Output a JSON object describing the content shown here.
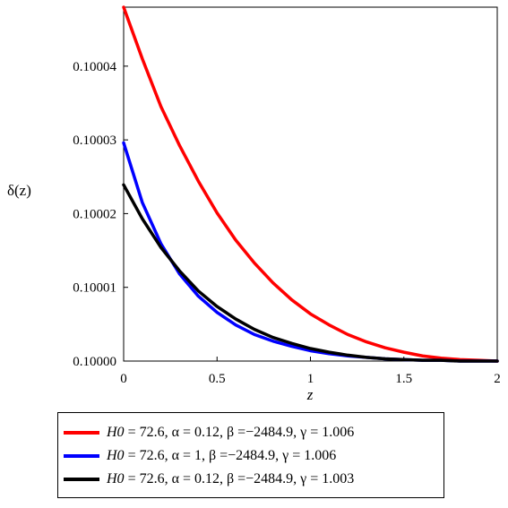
{
  "chart_data": {
    "type": "line",
    "xlabel": "z",
    "ylabel": "δ(z)",
    "xlim": [
      0,
      2
    ],
    "ylim": [
      0.1,
      0.100048
    ],
    "x_ticks": [
      "0",
      "0.5",
      "1",
      "1.5",
      "2"
    ],
    "y_ticks": [
      "0.10000",
      "0.10001",
      "0.10002",
      "0.10003",
      "0.10004"
    ],
    "grid": false,
    "legend_position": "bottom",
    "series": [
      {
        "name": "H0 = 72.6, α = 0.12, β =−2484.9, γ = 1.006",
        "color": "#ff0000",
        "x": [
          0,
          0.1,
          0.2,
          0.3,
          0.4,
          0.5,
          0.6,
          0.7,
          0.8,
          0.9,
          1.0,
          1.1,
          1.2,
          1.3,
          1.4,
          1.5,
          1.6,
          1.7,
          1.8,
          1.9,
          2.0
        ],
        "y": [
          0.100048,
          0.100041,
          0.1000345,
          0.1000292,
          0.1000244,
          0.1000201,
          0.1000164,
          0.1000133,
          0.1000106,
          0.1000083,
          0.1000064,
          0.1000049,
          0.1000036,
          0.1000026,
          0.1000018,
          0.1000012,
          0.1000007,
          0.1000004,
          0.1000002,
          0.1000001,
          0.1
        ]
      },
      {
        "name": "H0 = 72.6, α = 1, β =−2484.9, γ = 1.006",
        "color": "#0000ff",
        "x": [
          0,
          0.1,
          0.2,
          0.3,
          0.4,
          0.5,
          0.6,
          0.7,
          0.8,
          0.9,
          1.0,
          1.1,
          1.2,
          1.3,
          1.4,
          1.5,
          1.6,
          1.7,
          1.8,
          1.9,
          2.0
        ],
        "y": [
          0.1000296,
          0.1000215,
          0.1000159,
          0.1000118,
          0.1000088,
          0.1000066,
          0.1000049,
          0.1000036,
          0.1000027,
          0.100002,
          0.1000014,
          0.100001,
          0.1000007,
          0.1000005,
          0.1000003,
          0.1000002,
          0.1000001,
          0.1000001,
          0.1,
          0.1,
          0.1
        ]
      },
      {
        "name": "H0 = 72.6, α = 0.12, β =−2484.9, γ = 1.003",
        "color": "#000000",
        "x": [
          0,
          0.1,
          0.2,
          0.3,
          0.4,
          0.5,
          0.6,
          0.7,
          0.8,
          0.9,
          1.0,
          1.1,
          1.2,
          1.3,
          1.4,
          1.5,
          1.6,
          1.7,
          1.8,
          1.9,
          2.0
        ],
        "y": [
          0.1000239,
          0.1000193,
          0.1000154,
          0.1000122,
          0.1000095,
          0.1000074,
          0.1000057,
          0.1000043,
          0.1000032,
          0.1000024,
          0.1000017,
          0.1000012,
          0.1000008,
          0.1000005,
          0.1000003,
          0.1000002,
          0.1000001,
          0.1000001,
          0.1,
          0.1,
          0.1
        ]
      }
    ]
  },
  "legend": {
    "items": [
      {
        "color": "#ff0000",
        "h0_label": "H0",
        "text": " = 72.6, α = 0.12, β =−2484.9, γ = 1.006"
      },
      {
        "color": "#0000ff",
        "h0_label": "H0",
        "text": " = 72.6, α = 1, β =−2484.9, γ = 1.006"
      },
      {
        "color": "#000000",
        "h0_label": "H0",
        "text": " = 72.6, α = 0.12, β =−2484.9, γ = 1.003"
      }
    ]
  }
}
